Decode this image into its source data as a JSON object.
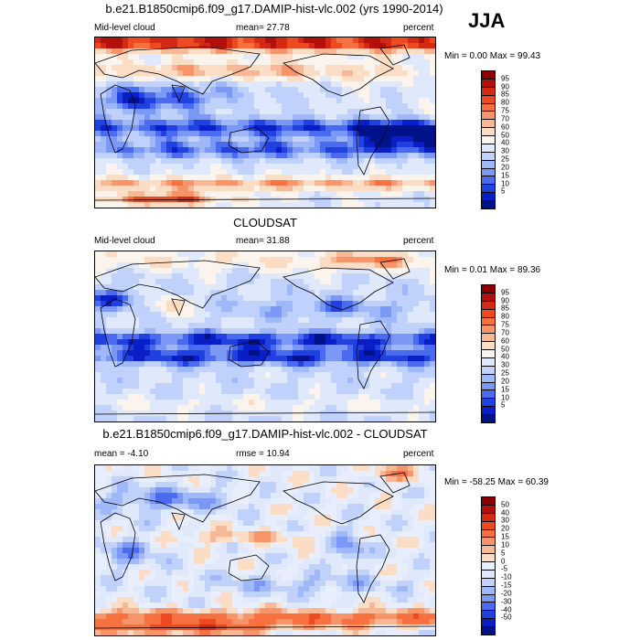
{
  "season": "JJA",
  "panels": [
    {
      "title": "b.e21.B1850cmip6.f09_g17.DAMIP-hist-vlc.002 (yrs 1990-2014)",
      "left_label": "Mid-level cloud",
      "center_label": "mean=  27.78",
      "right_label": "percent",
      "minmax": "Min =   0.00 Max =  99.43",
      "field": "model"
    },
    {
      "title": "CLOUDSAT",
      "left_label": "Mid-level cloud",
      "center_label": "mean=  31.88",
      "right_label": "percent",
      "minmax": "Min =   0.01 Max =  89.36",
      "field": "obs"
    },
    {
      "title": "b.e21.B1850cmip6.f09_g17.DAMIP-hist-vlc.002 - CLOUDSAT",
      "left_label": "mean = -4.10",
      "center_label": "rmse =  10.94",
      "right_label": "percent",
      "minmax": "Min = -58.25 Max =  60.39",
      "field": "diff"
    }
  ],
  "colorbars": {
    "absolute": {
      "labels": [
        "95",
        "90",
        "85",
        "80",
        "75",
        "70",
        "60",
        "50",
        "40",
        "30",
        "25",
        "20",
        "15",
        "10",
        "5"
      ],
      "colors": [
        "#8b0000",
        "#b2100c",
        "#d42a14",
        "#ee4a22",
        "#f67040",
        "#f7946a",
        "#f8b896",
        "#fbdcc4",
        "#fbf4ec",
        "#dfe9fb",
        "#c0d2fb",
        "#9fb8fa",
        "#7b98f6",
        "#4a6af0",
        "#2040e0",
        "#0a1ec8",
        "#00128a"
      ]
    },
    "difference": {
      "labels": [
        "50",
        "40",
        "30",
        "20",
        "15",
        "10",
        "5",
        "0",
        "-5",
        "-10",
        "-15",
        "-20",
        "-30",
        "-40",
        "-50"
      ],
      "colors": [
        "#8b0000",
        "#b2100c",
        "#d42a14",
        "#ee4a22",
        "#f67040",
        "#f7946a",
        "#f8b896",
        "#fbdcc4",
        "#e8eefb",
        "#dfe9fb",
        "#c0d2fb",
        "#9fb8fa",
        "#7b98f6",
        "#4a6af0",
        "#2040e0",
        "#0a1ec8",
        "#00128a"
      ]
    }
  }
}
